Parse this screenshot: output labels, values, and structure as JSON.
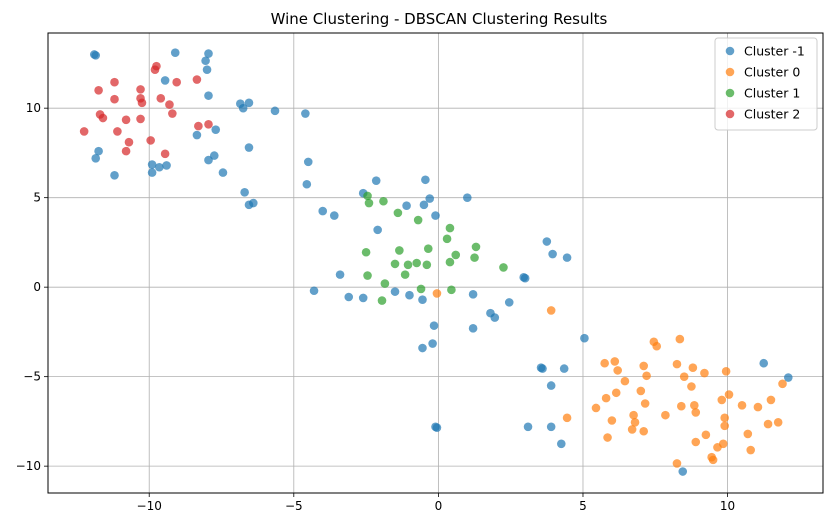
{
  "chart_data": {
    "type": "scatter",
    "title": "Wine Clustering - DBSCAN Clustering Results",
    "xlabel": "",
    "ylabel": "",
    "xlim": [
      -13.5,
      13.3
    ],
    "ylim": [
      -11.5,
      14.2
    ],
    "xticks": [
      -10,
      -5,
      0,
      5,
      10
    ],
    "yticks": [
      -10,
      -5,
      0,
      5,
      10
    ],
    "grid": true,
    "legend_position": "top-right",
    "series": [
      {
        "name": "Cluster -1",
        "color": "#1f77b4",
        "points": [
          [
            -11.9,
            13.0
          ],
          [
            -11.85,
            12.95
          ],
          [
            -9.1,
            13.1
          ],
          [
            -7.95,
            13.05
          ],
          [
            -8.05,
            12.65
          ],
          [
            -8.0,
            12.15
          ],
          [
            -7.95,
            10.7
          ],
          [
            -6.85,
            10.25
          ],
          [
            -6.75,
            10.0
          ],
          [
            -6.55,
            10.3
          ],
          [
            -5.65,
            9.85
          ],
          [
            -4.6,
            9.7
          ],
          [
            -11.75,
            7.6
          ],
          [
            -11.85,
            7.2
          ],
          [
            -11.2,
            6.25
          ],
          [
            -9.9,
            6.85
          ],
          [
            -9.9,
            6.4
          ],
          [
            -9.65,
            6.7
          ],
          [
            -9.4,
            6.8
          ],
          [
            -9.45,
            11.55
          ],
          [
            -8.35,
            8.5
          ],
          [
            -7.95,
            7.1
          ],
          [
            -7.75,
            7.35
          ],
          [
            -7.7,
            8.8
          ],
          [
            -7.45,
            6.4
          ],
          [
            -6.7,
            5.3
          ],
          [
            -6.55,
            4.6
          ],
          [
            -6.4,
            4.7
          ],
          [
            -6.55,
            7.8
          ],
          [
            -4.5,
            7.0
          ],
          [
            -4.55,
            5.75
          ],
          [
            -4.0,
            4.25
          ],
          [
            -3.6,
            4.0
          ],
          [
            -2.6,
            5.25
          ],
          [
            -2.15,
            5.95
          ],
          [
            -2.1,
            3.2
          ],
          [
            -1.1,
            4.55
          ],
          [
            -0.5,
            4.6
          ],
          [
            -0.45,
            6.0
          ],
          [
            -0.3,
            4.95
          ],
          [
            -0.1,
            4.0
          ],
          [
            1.0,
            5.0
          ],
          [
            -4.3,
            -0.2
          ],
          [
            -3.4,
            0.7
          ],
          [
            -3.1,
            -0.55
          ],
          [
            -2.6,
            -0.6
          ],
          [
            -1.5,
            -0.25
          ],
          [
            -1.0,
            -0.45
          ],
          [
            -0.55,
            -0.7
          ],
          [
            -0.15,
            -2.15
          ],
          [
            -0.2,
            -3.15
          ],
          [
            -0.55,
            -3.4
          ],
          [
            1.2,
            -0.4
          ],
          [
            1.2,
            -2.3
          ],
          [
            1.8,
            -1.45
          ],
          [
            1.95,
            -1.7
          ],
          [
            2.45,
            -0.85
          ],
          [
            2.95,
            0.55
          ],
          [
            3.0,
            0.5
          ],
          [
            3.75,
            2.55
          ],
          [
            3.95,
            1.85
          ],
          [
            4.45,
            1.65
          ],
          [
            5.05,
            -2.85
          ],
          [
            3.55,
            -4.5
          ],
          [
            3.6,
            -4.55
          ],
          [
            3.9,
            -5.5
          ],
          [
            4.35,
            -4.55
          ],
          [
            3.1,
            -7.8
          ],
          [
            3.9,
            -7.8
          ],
          [
            4.25,
            -8.75
          ],
          [
            -0.1,
            -7.8
          ],
          [
            -0.05,
            -7.85
          ],
          [
            11.25,
            -4.25
          ],
          [
            12.1,
            -5.05
          ],
          [
            8.45,
            -10.3
          ]
        ]
      },
      {
        "name": "Cluster 0",
        "color": "#ff7f0e",
        "points": [
          [
            -0.05,
            -0.35
          ],
          [
            3.9,
            -1.3
          ],
          [
            7.45,
            -3.05
          ],
          [
            7.55,
            -3.3
          ],
          [
            8.35,
            -2.9
          ],
          [
            5.75,
            -4.25
          ],
          [
            6.1,
            -4.15
          ],
          [
            6.2,
            -4.65
          ],
          [
            7.1,
            -4.4
          ],
          [
            8.25,
            -4.3
          ],
          [
            8.8,
            -4.5
          ],
          [
            9.2,
            -4.8
          ],
          [
            9.95,
            -4.7
          ],
          [
            6.45,
            -5.25
          ],
          [
            7.2,
            -4.95
          ],
          [
            8.5,
            -5.0
          ],
          [
            8.75,
            -5.55
          ],
          [
            5.8,
            -6.2
          ],
          [
            6.15,
            -5.9
          ],
          [
            7.0,
            -5.8
          ],
          [
            7.15,
            -6.5
          ],
          [
            8.4,
            -6.65
          ],
          [
            8.85,
            -6.6
          ],
          [
            9.8,
            -6.3
          ],
          [
            10.05,
            -6.0
          ],
          [
            10.5,
            -6.6
          ],
          [
            11.5,
            -6.3
          ],
          [
            11.9,
            -5.4
          ],
          [
            5.45,
            -6.75
          ],
          [
            4.45,
            -7.3
          ],
          [
            6.0,
            -7.45
          ],
          [
            6.75,
            -7.15
          ],
          [
            6.8,
            -7.55
          ],
          [
            6.7,
            -7.95
          ],
          [
            7.1,
            -8.05
          ],
          [
            7.85,
            -7.15
          ],
          [
            8.9,
            -7.0
          ],
          [
            9.9,
            -7.3
          ],
          [
            9.9,
            -7.75
          ],
          [
            10.7,
            -8.2
          ],
          [
            11.05,
            -6.7
          ],
          [
            11.4,
            -7.65
          ],
          [
            11.75,
            -7.55
          ],
          [
            5.85,
            -8.4
          ],
          [
            8.9,
            -8.65
          ],
          [
            9.25,
            -8.25
          ],
          [
            9.65,
            -8.95
          ],
          [
            9.85,
            -8.75
          ],
          [
            9.45,
            -9.5
          ],
          [
            9.5,
            -9.65
          ],
          [
            10.8,
            -9.1
          ],
          [
            8.25,
            -9.85
          ]
        ]
      },
      {
        "name": "Cluster 1",
        "color": "#2ca02c",
        "points": [
          [
            -2.45,
            5.1
          ],
          [
            -2.4,
            4.7
          ],
          [
            -1.9,
            4.8
          ],
          [
            -1.4,
            4.15
          ],
          [
            -0.7,
            3.75
          ],
          [
            0.3,
            2.7
          ],
          [
            0.4,
            3.3
          ],
          [
            -2.5,
            1.95
          ],
          [
            -1.35,
            2.05
          ],
          [
            -0.35,
            2.15
          ],
          [
            -2.45,
            0.65
          ],
          [
            -1.85,
            0.2
          ],
          [
            -1.5,
            1.3
          ],
          [
            -1.15,
            0.7
          ],
          [
            -1.05,
            1.25
          ],
          [
            -0.75,
            1.35
          ],
          [
            -0.4,
            1.25
          ],
          [
            0.4,
            1.4
          ],
          [
            0.6,
            1.8
          ],
          [
            1.25,
            1.65
          ],
          [
            1.3,
            2.25
          ],
          [
            2.25,
            1.1
          ],
          [
            -1.95,
            -0.75
          ],
          [
            -0.6,
            -0.1
          ],
          [
            0.45,
            -0.15
          ]
        ]
      },
      {
        "name": "Cluster 2",
        "color": "#d62728",
        "points": [
          [
            -9.8,
            12.15
          ],
          [
            -9.75,
            12.35
          ],
          [
            -8.35,
            11.6
          ],
          [
            -11.2,
            11.45
          ],
          [
            -9.05,
            11.45
          ],
          [
            -11.75,
            11.0
          ],
          [
            -10.3,
            11.05
          ],
          [
            -11.2,
            10.5
          ],
          [
            -10.3,
            10.55
          ],
          [
            -10.25,
            10.3
          ],
          [
            -9.6,
            10.55
          ],
          [
            -9.3,
            10.2
          ],
          [
            -9.2,
            9.7
          ],
          [
            -11.7,
            9.65
          ],
          [
            -11.6,
            9.45
          ],
          [
            -10.3,
            9.4
          ],
          [
            -10.8,
            9.35
          ],
          [
            -12.25,
            8.7
          ],
          [
            -11.1,
            8.7
          ],
          [
            -9.95,
            8.2
          ],
          [
            -10.7,
            8.1
          ],
          [
            -8.3,
            9.0
          ],
          [
            -7.95,
            9.1
          ],
          [
            -10.8,
            7.6
          ],
          [
            -9.45,
            7.45
          ]
        ]
      }
    ]
  }
}
